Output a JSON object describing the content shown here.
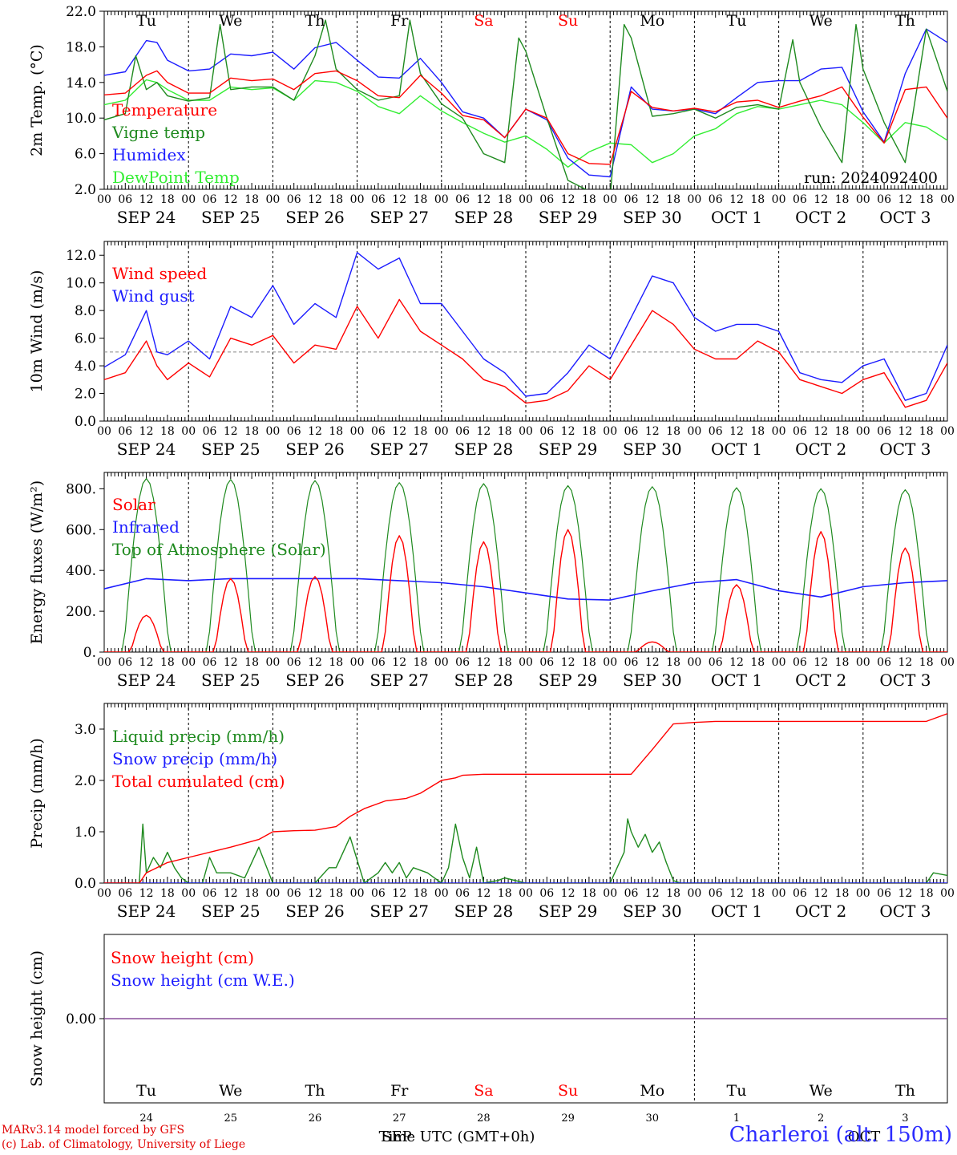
{
  "colors": {
    "red": "#ff0000",
    "green": "#1f8a1f",
    "blue": "#1c1cff",
    "light_green": "#33ee33",
    "purple": "#8a4f9a",
    "weekend": "#ff0000",
    "credits": "#e00000",
    "station": "#2b2bff"
  },
  "days": [
    "Tu",
    "We",
    "Th",
    "Fr",
    "Sa",
    "Su",
    "Mo",
    "Tu",
    "We",
    "Th"
  ],
  "weekend_days": [
    4,
    5
  ],
  "hour_labels": [
    "00",
    "06",
    "12",
    "18"
  ],
  "date_labels": [
    {
      "month": "SEP",
      "day": "24"
    },
    {
      "month": "SEP",
      "day": "25"
    },
    {
      "month": "SEP",
      "day": "26"
    },
    {
      "month": "SEP",
      "day": "27"
    },
    {
      "month": "SEP",
      "day": "28"
    },
    {
      "month": "SEP",
      "day": "29"
    },
    {
      "month": "SEP",
      "day": "30"
    },
    {
      "month": "OCT",
      "day": "1"
    },
    {
      "month": "OCT",
      "day": "2"
    },
    {
      "month": "OCT",
      "day": "3"
    }
  ],
  "bottom_day_numbers": [
    "24",
    "25",
    "26",
    "27",
    "28",
    "29",
    "30",
    "1",
    "2",
    "3"
  ],
  "bottom_month_label": "OCT",
  "x_axis_label": "Time UTC (GMT+0h)",
  "overlap_label": "SEP",
  "run_label": "run: 2024092400",
  "credits": [
    "MARv3.14 model forced by GFS",
    "(c) Lab. of Climatology, University of Liege"
  ],
  "station_label": "Charleroi (alt. 150m)",
  "chart_data": [
    {
      "type": "line",
      "ylabel": "2m Temp. (°C)",
      "ylim": [
        2,
        22
      ],
      "yticks": [
        "2.0",
        "6.0",
        "10.0",
        "14.0",
        "18.0",
        "22.0"
      ],
      "x_unit": "hours since 2024-09-24 00 UTC",
      "legend_placement": "top-left",
      "annotation": "run: 2024092400",
      "series": [
        {
          "name": "Temperature",
          "color": "red",
          "x": [
            0,
            6,
            12,
            15,
            18,
            24,
            30,
            36,
            42,
            48,
            54,
            60,
            66,
            72,
            78,
            84,
            90,
            96,
            102,
            108,
            114,
            120,
            126,
            132,
            138,
            144,
            150,
            156,
            162,
            168,
            174,
            180,
            186,
            192,
            198,
            204,
            210,
            216,
            222,
            228,
            234,
            240
          ],
          "y": [
            12.6,
            12.8,
            14.8,
            15.3,
            14.0,
            12.8,
            12.8,
            14.5,
            14.2,
            14.4,
            13.2,
            15.0,
            15.3,
            14.2,
            12.5,
            12.3,
            14.8,
            12.8,
            10.3,
            9.8,
            7.8,
            11.0,
            10.0,
            6.0,
            4.9,
            4.8,
            13.0,
            11.2,
            10.8,
            11.1,
            10.7,
            11.8,
            12.0,
            11.2,
            11.9,
            12.5,
            13.5,
            10.1,
            7.2,
            13.2,
            13.5,
            10.0
          ]
        },
        {
          "name": "Vigne temp",
          "color": "green",
          "x": [
            0,
            6,
            9,
            12,
            15,
            18,
            24,
            30,
            33,
            36,
            42,
            48,
            54,
            60,
            63,
            66,
            72,
            78,
            84,
            87,
            90,
            96,
            102,
            108,
            114,
            118,
            120,
            126,
            132,
            138,
            144,
            148,
            150,
            156,
            162,
            168,
            174,
            180,
            186,
            192,
            196,
            198,
            204,
            210,
            214,
            216,
            222,
            228,
            234,
            240
          ],
          "y": [
            9.8,
            10.5,
            17.0,
            13.2,
            14.0,
            12.5,
            11.9,
            12.3,
            20.5,
            13.2,
            13.5,
            13.5,
            12.0,
            17.0,
            21.0,
            15.5,
            13.2,
            12.0,
            12.5,
            21.0,
            15.0,
            11.6,
            10.0,
            6.0,
            5.0,
            19.0,
            17.5,
            10.0,
            3.0,
            1.8,
            1.0,
            20.5,
            19.0,
            10.2,
            10.5,
            11.0,
            10.0,
            11.2,
            11.5,
            11.0,
            18.8,
            14.0,
            9.0,
            5.0,
            20.5,
            15.5,
            9.5,
            5.0,
            20.0,
            13.0
          ]
        },
        {
          "name": "Humidex",
          "color": "blue",
          "x": [
            0,
            6,
            12,
            15,
            18,
            24,
            30,
            36,
            42,
            48,
            54,
            60,
            66,
            72,
            78,
            84,
            90,
            96,
            102,
            108,
            114,
            120,
            126,
            132,
            138,
            144,
            150,
            156,
            162,
            168,
            174,
            180,
            186,
            192,
            198,
            204,
            210,
            216,
            222,
            228,
            234,
            240
          ],
          "y": [
            14.8,
            15.2,
            18.7,
            18.5,
            16.5,
            15.3,
            15.5,
            17.2,
            17.0,
            17.4,
            15.5,
            17.9,
            18.5,
            16.5,
            14.6,
            14.5,
            16.7,
            14.0,
            10.7,
            10.0,
            7.8,
            11.0,
            9.8,
            5.5,
            3.6,
            3.4,
            13.5,
            11.0,
            10.8,
            11.0,
            10.5,
            12.3,
            14.0,
            14.2,
            14.2,
            15.5,
            15.7,
            10.7,
            7.3,
            15.0,
            20.0,
            18.5
          ]
        },
        {
          "name": "DewPoint Temp",
          "color": "light_green",
          "x": [
            0,
            6,
            12,
            15,
            18,
            24,
            30,
            36,
            42,
            48,
            54,
            60,
            66,
            72,
            78,
            84,
            90,
            96,
            102,
            108,
            114,
            120,
            126,
            132,
            138,
            144,
            150,
            156,
            162,
            168,
            174,
            180,
            186,
            192,
            198,
            204,
            210,
            216,
            222,
            228,
            234,
            240
          ],
          "y": [
            11.5,
            12.0,
            14.3,
            14.0,
            13.2,
            12.0,
            12.0,
            13.5,
            13.2,
            13.4,
            12.0,
            14.2,
            14.0,
            13.0,
            11.3,
            10.5,
            12.5,
            10.8,
            9.5,
            8.3,
            7.3,
            8.0,
            6.5,
            4.5,
            6.2,
            7.2,
            7.0,
            5.0,
            6.0,
            8.0,
            8.8,
            10.5,
            11.3,
            11.0,
            11.5,
            12.0,
            11.5,
            9.5,
            7.2,
            9.5,
            9.0,
            7.5
          ]
        }
      ]
    },
    {
      "type": "line",
      "ylabel": "10m Wind (m/s)",
      "ylim": [
        0,
        13
      ],
      "yticks": [
        "0.0",
        "2.0",
        "4.0",
        "6.0",
        "8.0",
        "10.0",
        "12.0"
      ],
      "reference_line": 5.0,
      "x_unit": "hours since 2024-09-24 00 UTC",
      "legend_placement": "top-left",
      "series": [
        {
          "name": "Wind speed",
          "color": "red",
          "x": [
            0,
            6,
            12,
            15,
            18,
            24,
            30,
            36,
            42,
            48,
            54,
            60,
            66,
            72,
            78,
            84,
            90,
            96,
            102,
            108,
            114,
            120,
            126,
            132,
            138,
            144,
            150,
            156,
            162,
            168,
            174,
            180,
            186,
            192,
            198,
            204,
            210,
            216,
            222,
            228,
            234,
            240
          ],
          "y": [
            3.0,
            3.5,
            5.8,
            4.0,
            3.0,
            4.2,
            3.2,
            6.0,
            5.5,
            6.2,
            4.2,
            5.5,
            5.2,
            8.3,
            6.0,
            8.8,
            6.5,
            5.5,
            4.5,
            3.0,
            2.5,
            1.3,
            1.5,
            2.2,
            4.0,
            3.0,
            5.5,
            8.0,
            7.0,
            5.2,
            4.5,
            4.5,
            5.8,
            5.0,
            3.0,
            2.5,
            2.0,
            3.0,
            3.5,
            1.0,
            1.5,
            4.2
          ]
        },
        {
          "name": "Wind gust",
          "color": "blue",
          "x": [
            0,
            6,
            12,
            15,
            18,
            24,
            30,
            36,
            42,
            48,
            54,
            60,
            66,
            72,
            78,
            84,
            90,
            96,
            102,
            108,
            114,
            120,
            126,
            132,
            138,
            144,
            150,
            156,
            162,
            168,
            174,
            180,
            186,
            192,
            198,
            204,
            210,
            216,
            222,
            228,
            234,
            240
          ],
          "y": [
            3.9,
            4.8,
            8.0,
            5.0,
            4.8,
            5.8,
            4.5,
            8.3,
            7.5,
            9.8,
            7.0,
            8.5,
            7.5,
            12.2,
            11.0,
            11.8,
            8.5,
            8.5,
            6.5,
            4.5,
            3.5,
            1.8,
            2.0,
            3.5,
            5.5,
            4.5,
            7.5,
            10.5,
            10.0,
            7.5,
            6.5,
            7.0,
            7.0,
            6.5,
            3.5,
            3.0,
            2.8,
            4.0,
            4.5,
            1.5,
            2.0,
            5.5
          ]
        }
      ]
    },
    {
      "type": "line",
      "ylabel": "Energy fluxes (W/m²)",
      "ylim": [
        0,
        880
      ],
      "yticks": [
        "0.",
        "200.",
        "400.",
        "600.",
        "800."
      ],
      "x_unit": "hours since 2024-09-24 00 UTC",
      "legend_placement": "top-left",
      "series": [
        {
          "name": "Solar",
          "color": "red",
          "daily_peak_hour": 12,
          "daily_peaks": [
            180,
            360,
            370,
            570,
            540,
            600,
            50,
            330,
            590,
            510
          ]
        },
        {
          "name": "Infrared",
          "color": "blue",
          "x": [
            0,
            12,
            24,
            36,
            48,
            60,
            72,
            84,
            96,
            108,
            120,
            132,
            144,
            156,
            168,
            180,
            192,
            204,
            216,
            228,
            240
          ],
          "y": [
            310,
            360,
            350,
            360,
            360,
            360,
            360,
            350,
            340,
            320,
            290,
            260,
            255,
            300,
            340,
            355,
            300,
            270,
            320,
            340,
            350
          ]
        },
        {
          "name": "Top of Atmosphere (Solar)",
          "color": "green",
          "daily_peak_hour": 12,
          "daily_peaks": [
            850,
            845,
            840,
            830,
            825,
            815,
            810,
            805,
            800,
            795
          ]
        }
      ]
    },
    {
      "type": "line",
      "ylabel": "Precip (mm/h)",
      "ylim": [
        0,
        3.5
      ],
      "yticks": [
        "0.0",
        "1.0",
        "2.0",
        "3.0"
      ],
      "x_unit": "hours since 2024-09-24 00 UTC",
      "legend_placement": "top-left",
      "series": [
        {
          "name": "Liquid precip (mm/h)",
          "color": "green",
          "x": [
            0,
            6,
            10,
            11,
            12,
            14,
            16,
            18,
            20,
            22,
            24,
            28,
            30,
            32,
            36,
            40,
            44,
            48,
            50,
            60,
            64,
            66,
            70,
            74,
            78,
            80,
            82,
            84,
            86,
            88,
            92,
            96,
            98,
            100,
            102,
            104,
            106,
            108,
            112,
            114,
            120,
            132,
            144,
            148,
            149,
            150,
            152,
            154,
            156,
            158,
            160,
            162,
            164,
            168,
            180,
            192,
            204,
            216,
            228,
            234,
            236,
            240
          ],
          "y": [
            0,
            0,
            0,
            1.15,
            0.2,
            0.5,
            0.3,
            0.6,
            0.3,
            0.1,
            0,
            0,
            0.5,
            0.2,
            0.2,
            0.1,
            0.7,
            0,
            0,
            0,
            0.3,
            0.3,
            0.9,
            0,
            0.2,
            0.4,
            0.2,
            0.4,
            0.1,
            0.3,
            0.2,
            0,
            0.3,
            1.15,
            0.5,
            0.1,
            0.7,
            0,
            0.05,
            0.1,
            0,
            0,
            0,
            0.6,
            1.25,
            1.0,
            0.7,
            0.95,
            0.6,
            0.8,
            0.4,
            0.05,
            0,
            0,
            0,
            0,
            0,
            0,
            0,
            0,
            0.2,
            0.15
          ]
        },
        {
          "name": "Snow precip (mm/h)",
          "color": "blue",
          "x": [
            0,
            240
          ],
          "y": [
            0,
            0
          ]
        },
        {
          "name": "Total cumulated (cm)",
          "color": "red",
          "x": [
            0,
            10,
            12,
            18,
            24,
            30,
            36,
            44,
            48,
            54,
            60,
            66,
            70,
            74,
            80,
            86,
            90,
            96,
            100,
            102,
            108,
            114,
            120,
            132,
            138,
            144,
            150,
            156,
            162,
            168,
            174,
            180,
            192,
            204,
            216,
            228,
            234,
            240
          ],
          "y": [
            0,
            0,
            0.2,
            0.4,
            0.5,
            0.6,
            0.7,
            0.85,
            1.0,
            1.02,
            1.03,
            1.1,
            1.3,
            1.45,
            1.6,
            1.65,
            1.75,
            2.0,
            2.05,
            2.1,
            2.12,
            2.12,
            2.12,
            2.12,
            2.12,
            2.12,
            2.12,
            2.6,
            3.1,
            3.13,
            3.15,
            3.15,
            3.15,
            3.15,
            3.15,
            3.15,
            3.15,
            3.3
          ]
        }
      ]
    },
    {
      "type": "line",
      "ylabel": "Snow height (cm)",
      "yticks": [
        "0.00"
      ],
      "x_unit": "hours since 2024-09-24 00 UTC",
      "legend_placement": "top-left",
      "series": [
        {
          "name": "Snow height (cm)",
          "color": "red",
          "x": [
            0,
            240
          ],
          "y": [
            0,
            0
          ]
        },
        {
          "name": "Snow height (cm W.E.)",
          "color": "blue",
          "x": [
            0,
            240
          ],
          "y": [
            0,
            0
          ]
        }
      ]
    }
  ]
}
